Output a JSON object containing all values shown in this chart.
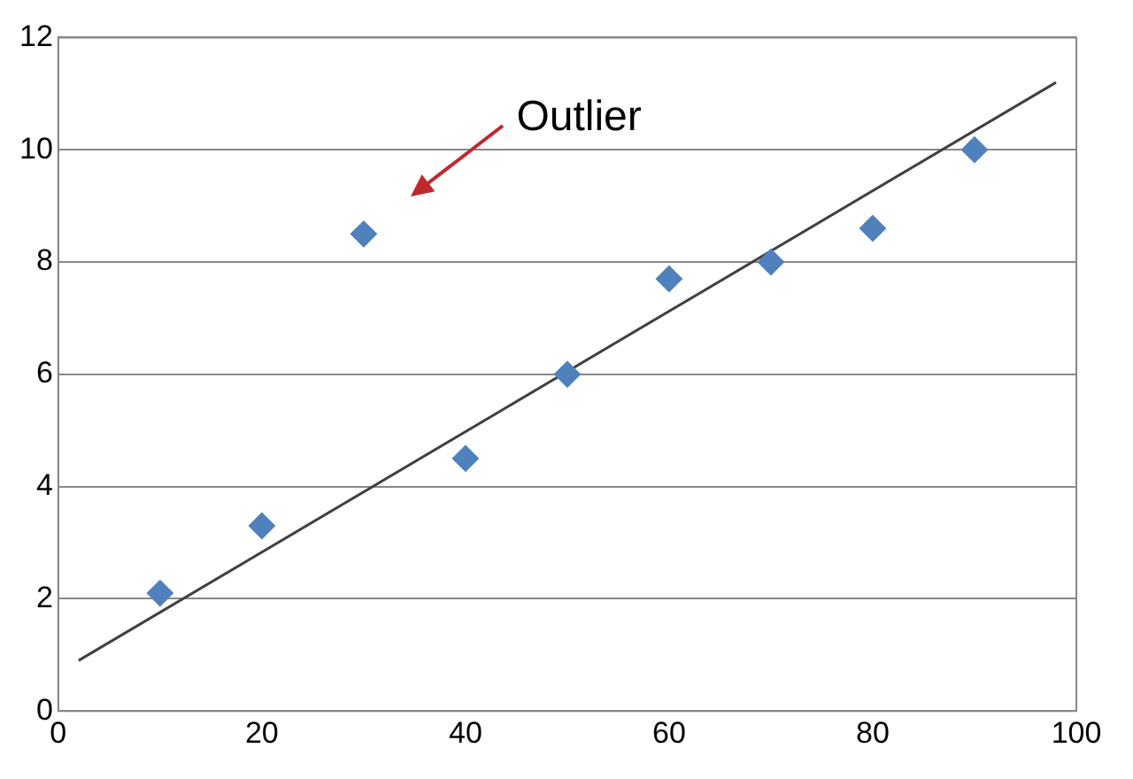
{
  "chart_data": {
    "type": "scatter",
    "series": [
      {
        "type": "scatter",
        "color": "#4f81bd",
        "x": [
          10,
          20,
          30,
          40,
          50,
          60,
          70,
          80,
          90
        ],
        "values": [
          2.1,
          3.3,
          8.5,
          4.5,
          6,
          7.7,
          8,
          8.6,
          10
        ],
        "marker": "diamond"
      },
      {
        "type": "line",
        "color": "#404040",
        "x": [
          2,
          98
        ],
        "values": [
          0.9,
          11.2
        ],
        "marker": "none",
        "line_style": "solid"
      }
    ],
    "xlim": [
      0,
      100
    ],
    "xticks": [
      0,
      20,
      40,
      60,
      80,
      100
    ],
    "ylim": [
      0,
      12
    ],
    "yticks": [
      0,
      2,
      4,
      6,
      8,
      10,
      12
    ],
    "grid": "y",
    "legend": false,
    "annotations": [
      "Outlier"
    ]
  }
}
